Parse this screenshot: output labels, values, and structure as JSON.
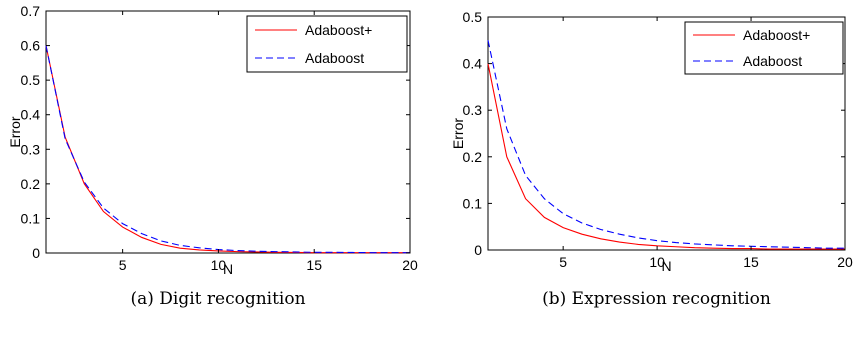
{
  "chart_data": [
    {
      "type": "line",
      "title": "",
      "caption": "(a) Digit recognition",
      "xlabel": "N",
      "ylabel": "Error",
      "xlim": [
        1,
        20
      ],
      "ylim": [
        0,
        0.7
      ],
      "xticks": [
        5,
        10,
        15,
        20
      ],
      "yticks": [
        0,
        0.1,
        0.2,
        0.3,
        0.4,
        0.5,
        0.6,
        0.7
      ],
      "xtick_labels": [
        "5",
        "10",
        "15",
        "20"
      ],
      "ytick_labels": [
        "0",
        "0.1",
        "0.2",
        "0.3",
        "0.4",
        "0.5",
        "0.6",
        "0.7"
      ],
      "grid": false,
      "legend": "top-right",
      "x": [
        1,
        2,
        3,
        4,
        5,
        6,
        7,
        8,
        9,
        10,
        11,
        12,
        13,
        14,
        15,
        16,
        17,
        18,
        19,
        20
      ],
      "series": [
        {
          "name": "Adaboost+",
          "color": "#ff0000",
          "dash": "solid",
          "values": [
            0.6,
            0.335,
            0.2,
            0.12,
            0.075,
            0.045,
            0.025,
            0.014,
            0.009,
            0.006,
            0.004,
            0.003,
            0.002,
            0.0015,
            0.001,
            0.001,
            0.001,
            0.001,
            0.001,
            0.001
          ]
        },
        {
          "name": "Adaboost",
          "color": "#0000ff",
          "dash": "dashed",
          "values": [
            0.6,
            0.33,
            0.205,
            0.13,
            0.085,
            0.056,
            0.035,
            0.022,
            0.015,
            0.01,
            0.007,
            0.005,
            0.004,
            0.003,
            0.002,
            0.002,
            0.0015,
            0.001,
            0.001,
            0.001
          ]
        }
      ]
    },
    {
      "type": "line",
      "title": "",
      "caption": "(b) Expression recognition",
      "xlabel": "N",
      "ylabel": "Error",
      "xlim": [
        1,
        20
      ],
      "ylim": [
        0,
        0.5
      ],
      "xticks": [
        5,
        10,
        15,
        20
      ],
      "yticks": [
        0,
        0.1,
        0.2,
        0.3,
        0.4,
        0.5
      ],
      "xtick_labels": [
        "5",
        "10",
        "15",
        "20"
      ],
      "ytick_labels": [
        "0",
        "0.1",
        "0.2",
        "0.3",
        "0.4",
        "0.5"
      ],
      "grid": false,
      "legend": "top-right",
      "x": [
        1,
        2,
        3,
        4,
        5,
        6,
        7,
        8,
        9,
        10,
        11,
        12,
        13,
        14,
        15,
        16,
        17,
        18,
        19,
        20
      ],
      "series": [
        {
          "name": "Adaboost+",
          "color": "#ff0000",
          "dash": "solid",
          "values": [
            0.4,
            0.2,
            0.11,
            0.07,
            0.048,
            0.034,
            0.024,
            0.017,
            0.012,
            0.009,
            0.007,
            0.005,
            0.004,
            0.003,
            0.003,
            0.002,
            0.002,
            0.002,
            0.002,
            0.002
          ]
        },
        {
          "name": "Adaboost",
          "color": "#0000ff",
          "dash": "dashed",
          "values": [
            0.45,
            0.26,
            0.16,
            0.11,
            0.078,
            0.058,
            0.044,
            0.034,
            0.026,
            0.02,
            0.016,
            0.013,
            0.011,
            0.009,
            0.008,
            0.007,
            0.006,
            0.005,
            0.004,
            0.004
          ]
        }
      ]
    }
  ]
}
